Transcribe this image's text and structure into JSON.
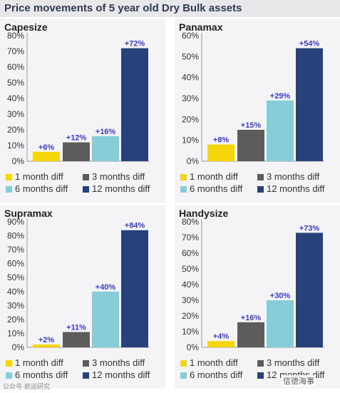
{
  "page_title": "Price movements of 5 year old Dry Bulk assets",
  "legend": [
    {
      "label": "1 month diff",
      "color": "#f5d60a"
    },
    {
      "label": "3 months diff",
      "color": "#5c5c5c"
    },
    {
      "label": "6 months diff",
      "color": "#86ccd9"
    },
    {
      "label": "12 months diff",
      "color": "#27417a"
    }
  ],
  "watermarks": {
    "left": "公众号·航运研究",
    "right": "信德海事"
  },
  "chart_data": [
    {
      "type": "bar",
      "title": "Capesize",
      "categories": [
        "1 month diff",
        "3 months diff",
        "6 months diff",
        "12 months diff"
      ],
      "values": [
        6,
        12,
        16,
        72
      ],
      "labels": [
        "+6%",
        "+12%",
        "+16%",
        "+72%"
      ],
      "ylim": [
        0,
        80
      ],
      "yticks": [
        "0%",
        "10%",
        "20%",
        "30%",
        "40%",
        "50%",
        "60%",
        "70%",
        "80%"
      ],
      "grid": false
    },
    {
      "type": "bar",
      "title": "Panamax",
      "categories": [
        "1 month diff",
        "3 months diff",
        "6 months diff",
        "12 months diff"
      ],
      "values": [
        8,
        15,
        29,
        54
      ],
      "labels": [
        "+8%",
        "+15%",
        "+29%",
        "+54%"
      ],
      "ylim": [
        0,
        60
      ],
      "yticks": [
        "0%",
        "10%",
        "20%",
        "30%",
        "40%",
        "50%",
        "60%"
      ],
      "grid": false
    },
    {
      "type": "bar",
      "title": "Supramax",
      "categories": [
        "1 month diff",
        "3 months diff",
        "6 months diff",
        "12 months diff"
      ],
      "values": [
        2,
        11,
        40,
        84
      ],
      "labels": [
        "+2%",
        "+11%",
        "+40%",
        "+84%"
      ],
      "ylim": [
        0,
        90
      ],
      "yticks": [
        "0%",
        "10%",
        "20%",
        "30%",
        "40%",
        "50%",
        "60%",
        "70%",
        "80%",
        "90%"
      ],
      "grid": false
    },
    {
      "type": "bar",
      "title": "Handysize",
      "categories": [
        "1 month diff",
        "3 months diff",
        "6 months diff",
        "12 months diff"
      ],
      "values": [
        4,
        16,
        30,
        73
      ],
      "labels": [
        "+4%",
        "+16%",
        "+30%",
        "+73%"
      ],
      "ylim": [
        0,
        80
      ],
      "yticks": [
        "0%",
        "10%",
        "20%",
        "30%",
        "40%",
        "50%",
        "60%",
        "70%",
        "80%"
      ],
      "grid": false
    }
  ]
}
